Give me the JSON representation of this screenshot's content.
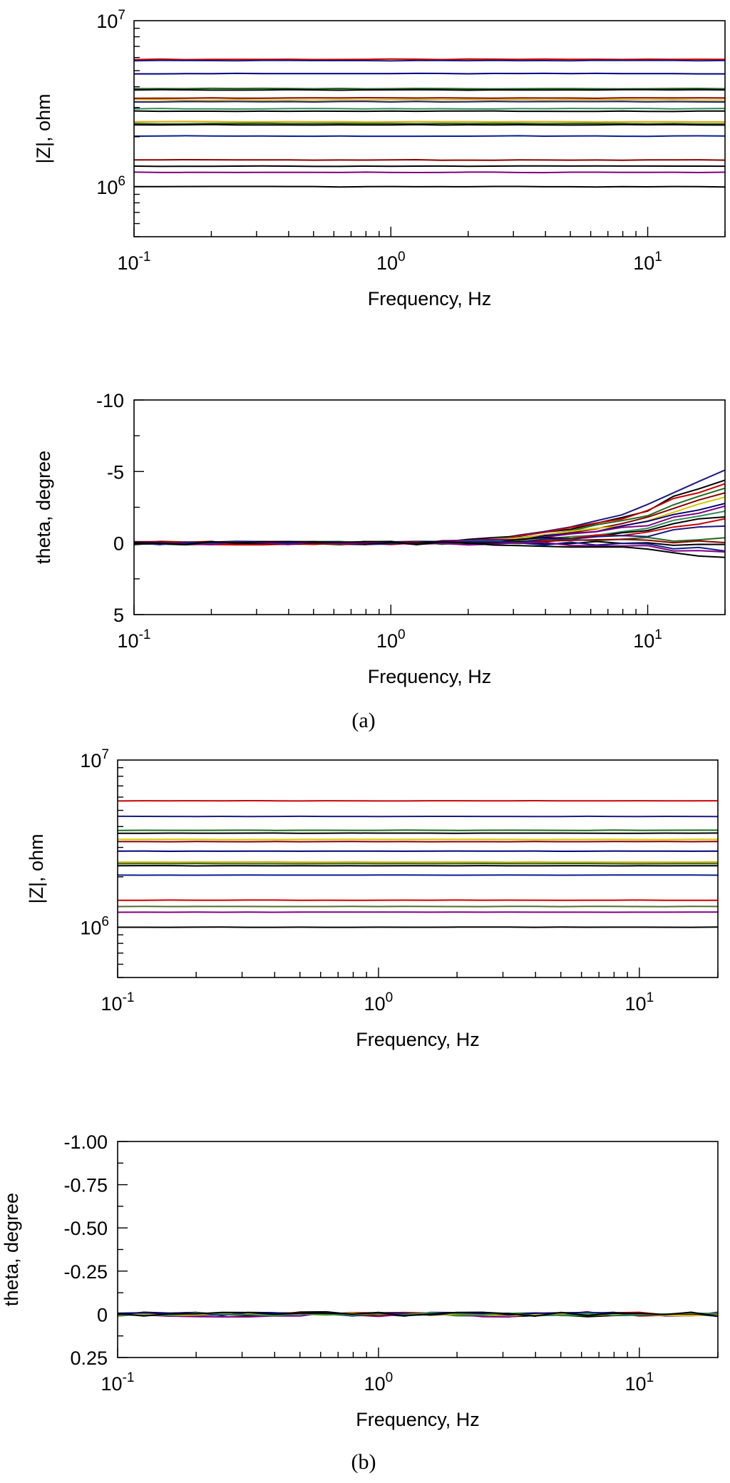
{
  "chart_data": [
    {
      "id": "a-magnitude",
      "type": "line",
      "xscale": "log",
      "yscale": "log",
      "xlim": [
        0.1,
        20
      ],
      "ylim": [
        500000,
        10000000
      ],
      "xlabel": "Frequency, Hz",
      "ylabel": "|Z|, ohm",
      "x_ticks": [
        {
          "base": "10",
          "exp": "-1"
        },
        {
          "base": "10",
          "exp": "0"
        },
        {
          "base": "10",
          "exp": "1"
        }
      ],
      "y_ticks": [
        {
          "base": "10",
          "exp": "6"
        },
        {
          "base": "10",
          "exp": "7"
        }
      ],
      "x": [
        0.1,
        0.126,
        0.158,
        0.2,
        0.251,
        0.316,
        0.398,
        0.501,
        0.631,
        0.794,
        1,
        1.26,
        1.58,
        2,
        2.51,
        3.16,
        3.98,
        5.01,
        6.31,
        7.94,
        10,
        12.6,
        15.8,
        20
      ],
      "series": [
        {
          "color": "#cc0000",
          "level": 5850000,
          "amp": 0.004
        },
        {
          "color": "#1a1a80",
          "level": 5750000,
          "amp": 0.004
        },
        {
          "color": "#000080",
          "level": 4800000,
          "amp": 0.004
        },
        {
          "color": "#1e6b1e",
          "level": 3900000,
          "amp": 0.004
        },
        {
          "color": "#000000",
          "level": 3830000,
          "amp": 0.004
        },
        {
          "color": "#8b0000",
          "level": 3420000,
          "amp": 0.004
        },
        {
          "color": "#d4c600",
          "level": 3330000,
          "amp": 0.004
        },
        {
          "color": "#1a1a80",
          "level": 3250000,
          "amp": 0.004
        },
        {
          "color": "#2e8b57",
          "level": 2950000,
          "amp": 0.004
        },
        {
          "color": "#000000",
          "level": 2850000,
          "amp": 0.004
        },
        {
          "color": "#e5a800",
          "level": 2460000,
          "amp": 0.004
        },
        {
          "color": "#1e6b1e",
          "level": 2400000,
          "amp": 0.004
        },
        {
          "color": "#000000",
          "level": 2360000,
          "amp": 0.004
        },
        {
          "color": "#0a1f8f",
          "level": 2020000,
          "amp": 0.004
        },
        {
          "color": "#8b0000",
          "level": 1450000,
          "amp": 0.004
        },
        {
          "color": "#000000",
          "level": 1330000,
          "amp": 0.004
        },
        {
          "color": "#800080",
          "level": 1220000,
          "amp": 0.004
        },
        {
          "color": "#000000",
          "level": 1000000,
          "amp": 0.004
        }
      ]
    },
    {
      "id": "a-phase",
      "type": "line",
      "xscale": "log",
      "yscale": "linear",
      "xlim": [
        0.1,
        20
      ],
      "ylim": [
        -10,
        5
      ],
      "y_inverted": true,
      "xlabel": "Frequency, Hz",
      "ylabel": "theta, degree",
      "x_ticks": [
        {
          "base": "10",
          "exp": "-1"
        },
        {
          "base": "10",
          "exp": "0"
        },
        {
          "base": "10",
          "exp": "1"
        }
      ],
      "y_ticks": [
        "-10",
        "-5",
        "0",
        "5"
      ],
      "x": [
        0.1,
        0.126,
        0.158,
        0.2,
        0.251,
        0.316,
        0.398,
        0.501,
        0.631,
        0.794,
        1,
        1.26,
        1.58,
        2,
        2.51,
        3.16,
        3.98,
        5.01,
        6.31,
        7.94,
        10,
        12.6,
        15.8,
        20
      ],
      "series": [
        {
          "color": "#1a1a80",
          "end": -4.7
        },
        {
          "color": "#000000",
          "end": -4.2
        },
        {
          "color": "#cc0000",
          "end": -3.9
        },
        {
          "color": "#1e6b1e",
          "end": -3.5
        },
        {
          "color": "#8b0000",
          "end": -3.1
        },
        {
          "color": "#d4c600",
          "end": -2.8
        },
        {
          "color": "#000080",
          "end": -2.5
        },
        {
          "color": "#800080",
          "end": -2.2
        },
        {
          "color": "#2e8b57",
          "end": -1.9
        },
        {
          "color": "#000000",
          "end": -1.6
        },
        {
          "color": "#cc0000",
          "end": -1.3
        },
        {
          "color": "#1a1a80",
          "end": -1.0
        },
        {
          "color": "#1e6b1e",
          "end": -0.7
        },
        {
          "color": "#8b0000",
          "end": -0.4
        },
        {
          "color": "#000000",
          "end": -0.1
        },
        {
          "color": "#0a1f8f",
          "end": 0.2
        },
        {
          "color": "#800080",
          "end": 0.4
        },
        {
          "color": "#000000",
          "end": 0.7
        }
      ]
    },
    {
      "id": "b-magnitude",
      "type": "line",
      "xscale": "log",
      "yscale": "log",
      "xlim": [
        0.1,
        20
      ],
      "ylim": [
        500000,
        10000000
      ],
      "xlabel": "Frequency, Hz",
      "ylabel": "|Z|, ohm",
      "x_ticks": [
        {
          "base": "10",
          "exp": "-1"
        },
        {
          "base": "10",
          "exp": "0"
        },
        {
          "base": "10",
          "exp": "1"
        }
      ],
      "y_ticks": [
        {
          "base": "10",
          "exp": "6"
        },
        {
          "base": "10",
          "exp": "7"
        }
      ],
      "x": [
        0.1,
        0.126,
        0.158,
        0.2,
        0.251,
        0.316,
        0.398,
        0.501,
        0.631,
        0.794,
        1,
        1.26,
        1.58,
        2,
        2.51,
        3.16,
        3.98,
        5.01,
        6.31,
        7.94,
        10,
        12.6,
        15.8,
        20
      ],
      "series": [
        {
          "color": "#cc0000",
          "level": 5700000,
          "amp": 0.002
        },
        {
          "color": "#1a1a80",
          "level": 4600000,
          "amp": 0.002
        },
        {
          "color": "#1e6b1e",
          "level": 3800000,
          "amp": 0.002
        },
        {
          "color": "#000000",
          "level": 3650000,
          "amp": 0.002
        },
        {
          "color": "#d4c600",
          "level": 3350000,
          "amp": 0.002
        },
        {
          "color": "#8b0000",
          "level": 3250000,
          "amp": 0.002
        },
        {
          "color": "#000080",
          "level": 2850000,
          "amp": 0.002
        },
        {
          "color": "#e5a800",
          "level": 2450000,
          "amp": 0.002
        },
        {
          "color": "#1e6b1e",
          "level": 2400000,
          "amp": 0.002
        },
        {
          "color": "#000000",
          "level": 2330000,
          "amp": 0.002
        },
        {
          "color": "#0a1f8f",
          "level": 2050000,
          "amp": 0.002
        },
        {
          "color": "#cc0000",
          "level": 1450000,
          "amp": 0.002
        },
        {
          "color": "#556b2f",
          "level": 1330000,
          "amp": 0.002
        },
        {
          "color": "#800080",
          "level": 1230000,
          "amp": 0.002
        },
        {
          "color": "#000000",
          "level": 1000000,
          "amp": 0.002
        }
      ]
    },
    {
      "id": "b-phase",
      "type": "line",
      "xscale": "log",
      "yscale": "linear",
      "xlim": [
        0.1,
        20
      ],
      "ylim": [
        -1.0,
        0.25
      ],
      "y_inverted": true,
      "xlabel": "Frequency, Hz",
      "ylabel": "theta, degree",
      "x_ticks": [
        {
          "base": "10",
          "exp": "-1"
        },
        {
          "base": "10",
          "exp": "0"
        },
        {
          "base": "10",
          "exp": "1"
        }
      ],
      "y_ticks": [
        "-1.00",
        "-0.75",
        "-0.50",
        "-0.25",
        "0",
        "0.25"
      ],
      "x": [
        0.1,
        0.126,
        0.158,
        0.2,
        0.251,
        0.316,
        0.398,
        0.501,
        0.631,
        0.794,
        1,
        1.26,
        1.58,
        2,
        2.51,
        3.16,
        3.98,
        5.01,
        6.31,
        7.94,
        10,
        12.6,
        15.8,
        20
      ],
      "series": [
        {
          "color": "#cc0000",
          "amp": 0.012
        },
        {
          "color": "#1a1a80",
          "amp": 0.012
        },
        {
          "color": "#000000",
          "amp": 0.015
        },
        {
          "color": "#1e6b1e",
          "amp": 0.01
        },
        {
          "color": "#800080",
          "amp": 0.015
        },
        {
          "color": "#8b0000",
          "amp": 0.01
        },
        {
          "color": "#d4c600",
          "amp": 0.008
        },
        {
          "color": "#000080",
          "amp": 0.012
        },
        {
          "color": "#2e8b57",
          "amp": 0.01
        },
        {
          "color": "#000000",
          "amp": 0.012
        }
      ]
    }
  ],
  "panel_labels": [
    "(a)",
    "(b)"
  ]
}
